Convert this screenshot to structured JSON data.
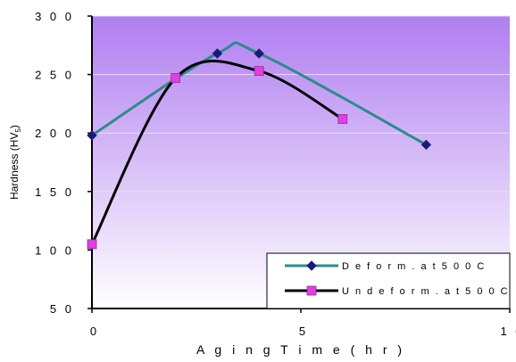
{
  "chart_data": {
    "type": "line",
    "xlabel": "A g i n g  T i m e  ( h r )",
    "ylabel_main": "Hardness (HV",
    "ylabel_sub": "5",
    "ylabel_close": ")",
    "xlim": [
      0,
      10
    ],
    "ylim": [
      50,
      300
    ],
    "x_ticks": [
      0,
      5,
      10
    ],
    "x_tick_labels": [
      "0",
      "5",
      "1 0"
    ],
    "y_ticks": [
      50,
      100,
      150,
      200,
      250,
      300
    ],
    "y_tick_labels": [
      "5 0",
      "1 0 0",
      "1 5 0",
      "2 0 0",
      "2 5 0",
      "3 0 0"
    ],
    "grid": "horizontal",
    "legend_position": "bottom-right",
    "series": [
      {
        "name": "D e f o r m . a t 5 0 0 C",
        "color": "#2a8c8c",
        "marker": "diamond",
        "marker_color": "#1a1a7a",
        "x": [
          0,
          3,
          4,
          8
        ],
        "y": [
          198,
          268,
          268,
          190
        ]
      },
      {
        "name": "U n d e f o r m . a t 5 0 0 C",
        "color": "#000000",
        "marker": "square",
        "marker_color": "#e040e0",
        "x": [
          0,
          2,
          4,
          6
        ],
        "y": [
          105,
          247,
          253,
          212
        ]
      }
    ],
    "plot_background": [
      "#ffffff",
      "#b07ef0"
    ]
  }
}
